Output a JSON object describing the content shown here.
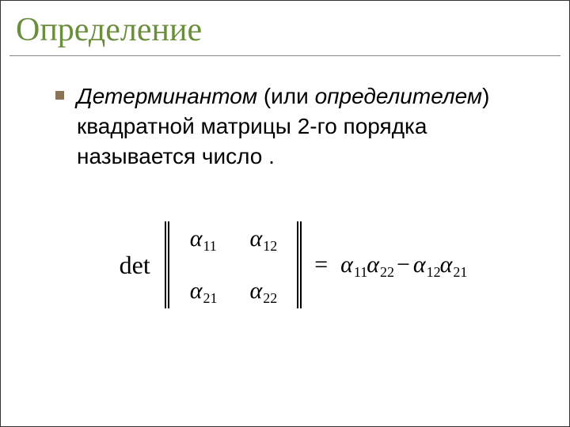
{
  "title": "Определение",
  "bullet_color": "#8b7355",
  "title_color": "#6b8e3d",
  "body": {
    "term1": "Детерминантом",
    "mid1": " (или ",
    "term2": "определителем",
    "mid2": ") квадратной матрицы 2-го порядка называется число ."
  },
  "formula": {
    "det_label": "det",
    "a11": "α",
    "a11_sub": "11",
    "a12": "α",
    "a12_sub": "12",
    "a21": "α",
    "a21_sub": "21",
    "a22": "α",
    "a22_sub": "22",
    "equals": "=",
    "rhs_1": "α",
    "rhs_1_sub": "11",
    "rhs_2": "α",
    "rhs_2_sub": "22",
    "minus": "−",
    "rhs_3": "α",
    "rhs_3_sub": "12",
    "rhs_4": "α",
    "rhs_4_sub": "21"
  }
}
